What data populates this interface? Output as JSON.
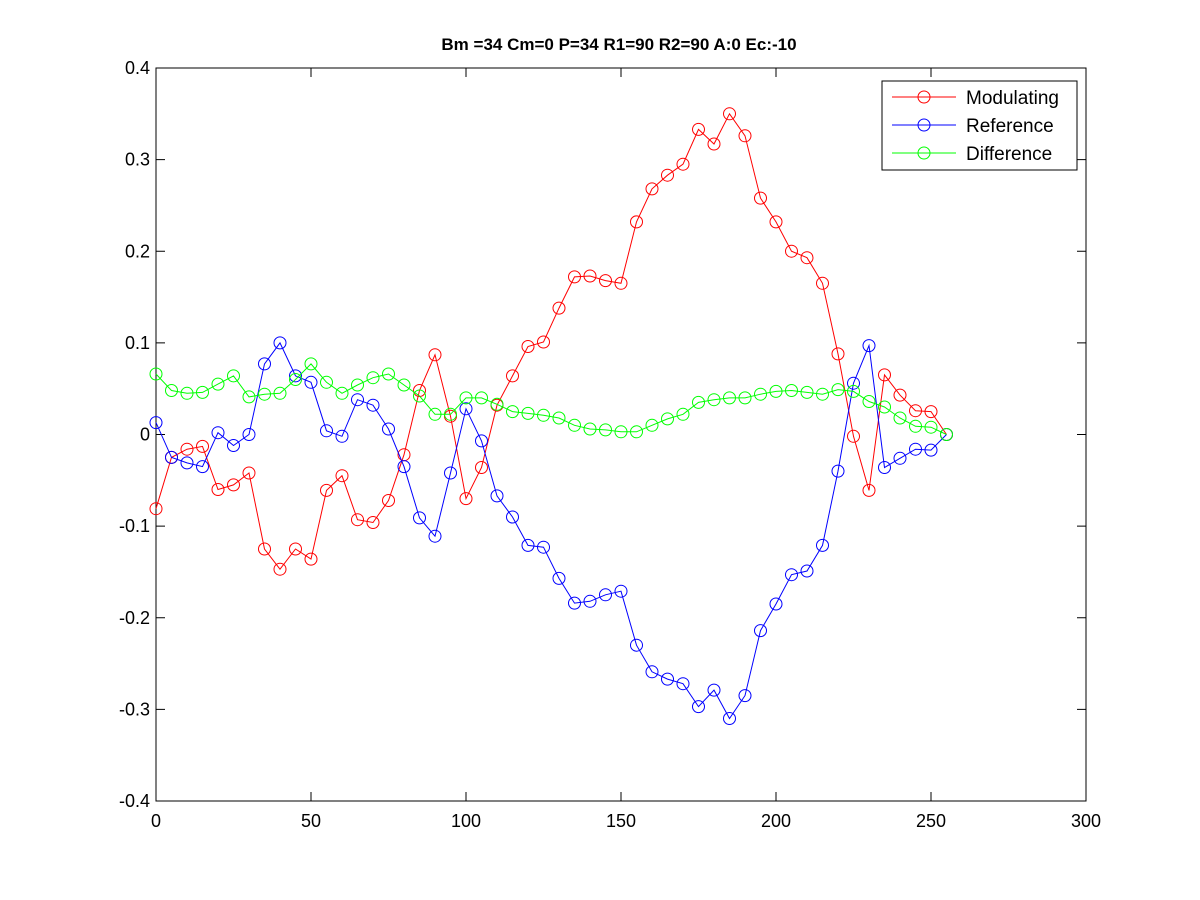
{
  "chart_data": {
    "type": "line",
    "title": "Bm =34  Cm=0  P=34  R1=90  R2=90  A:0  Ec:-10",
    "xlabel": "",
    "ylabel": "",
    "xlim": [
      0,
      300
    ],
    "ylim": [
      -0.4,
      0.4
    ],
    "xticks": [
      0,
      50,
      100,
      150,
      200,
      250,
      300
    ],
    "yticks": [
      -0.4,
      -0.3,
      -0.2,
      -0.1,
      0,
      0.1,
      0.2,
      0.3,
      0.4
    ],
    "xtick_labels": [
      "0",
      "50",
      "100",
      "150",
      "200",
      "250",
      "300"
    ],
    "ytick_labels": [
      "-0.4",
      "-0.3",
      "-0.2",
      "-0.1",
      "0",
      "0.1",
      "0.2",
      "0.3",
      "0.4"
    ],
    "grid": false,
    "legend_position": "top-right",
    "marker": "circle",
    "x": [
      0,
      5,
      10,
      15,
      20,
      25,
      30,
      35,
      40,
      45,
      50,
      55,
      60,
      65,
      70,
      75,
      80,
      85,
      90,
      95,
      100,
      105,
      110,
      115,
      120,
      125,
      130,
      135,
      140,
      145,
      150,
      155,
      160,
      165,
      170,
      175,
      180,
      185,
      190,
      195,
      200,
      205,
      210,
      215,
      220,
      225,
      230,
      235,
      240,
      245,
      250,
      255
    ],
    "series": [
      {
        "name": "Modulating",
        "color": "#ff0000",
        "values": [
          -0.081,
          -0.025,
          -0.016,
          -0.013,
          -0.06,
          -0.055,
          -0.042,
          -0.125,
          -0.147,
          -0.125,
          -0.136,
          -0.061,
          -0.045,
          -0.093,
          -0.096,
          -0.072,
          -0.022,
          0.048,
          0.087,
          0.02,
          -0.07,
          -0.036,
          0.032,
          0.064,
          0.096,
          0.101,
          0.138,
          0.172,
          0.173,
          0.168,
          0.165,
          0.232,
          0.268,
          0.283,
          0.295,
          0.333,
          0.317,
          0.35,
          0.326,
          0.258,
          0.232,
          0.2,
          0.193,
          0.165,
          0.088,
          -0.002,
          -0.061,
          0.065,
          0.043,
          0.026,
          0.025,
          0.0
        ]
      },
      {
        "name": "Reference",
        "color": "#0000ff",
        "values": [
          0.013,
          -0.025,
          -0.031,
          -0.035,
          0.002,
          -0.012,
          0.0,
          0.077,
          0.1,
          0.064,
          0.057,
          0.004,
          -0.002,
          0.038,
          0.032,
          0.006,
          -0.035,
          -0.091,
          -0.111,
          -0.042,
          0.028,
          -0.007,
          -0.067,
          -0.09,
          -0.121,
          -0.123,
          -0.157,
          -0.184,
          -0.182,
          -0.175,
          -0.171,
          -0.23,
          -0.259,
          -0.267,
          -0.272,
          -0.297,
          -0.279,
          -0.31,
          -0.285,
          -0.214,
          -0.185,
          -0.153,
          -0.149,
          -0.121,
          -0.04,
          0.056,
          0.097,
          -0.036,
          -0.026,
          -0.016,
          -0.017,
          0.0
        ]
      },
      {
        "name": "Difference",
        "color": "#00ff00",
        "values": [
          0.066,
          0.048,
          0.045,
          0.046,
          0.055,
          0.064,
          0.041,
          0.044,
          0.045,
          0.06,
          0.077,
          0.057,
          0.045,
          0.054,
          0.062,
          0.066,
          0.054,
          0.042,
          0.022,
          0.022,
          0.04,
          0.04,
          0.033,
          0.025,
          0.023,
          0.021,
          0.018,
          0.01,
          0.006,
          0.005,
          0.003,
          0.003,
          0.01,
          0.017,
          0.022,
          0.035,
          0.038,
          0.04,
          0.04,
          0.044,
          0.047,
          0.048,
          0.046,
          0.044,
          0.049,
          0.047,
          0.036,
          0.03,
          0.018,
          0.009,
          0.008,
          0.0
        ]
      }
    ]
  }
}
